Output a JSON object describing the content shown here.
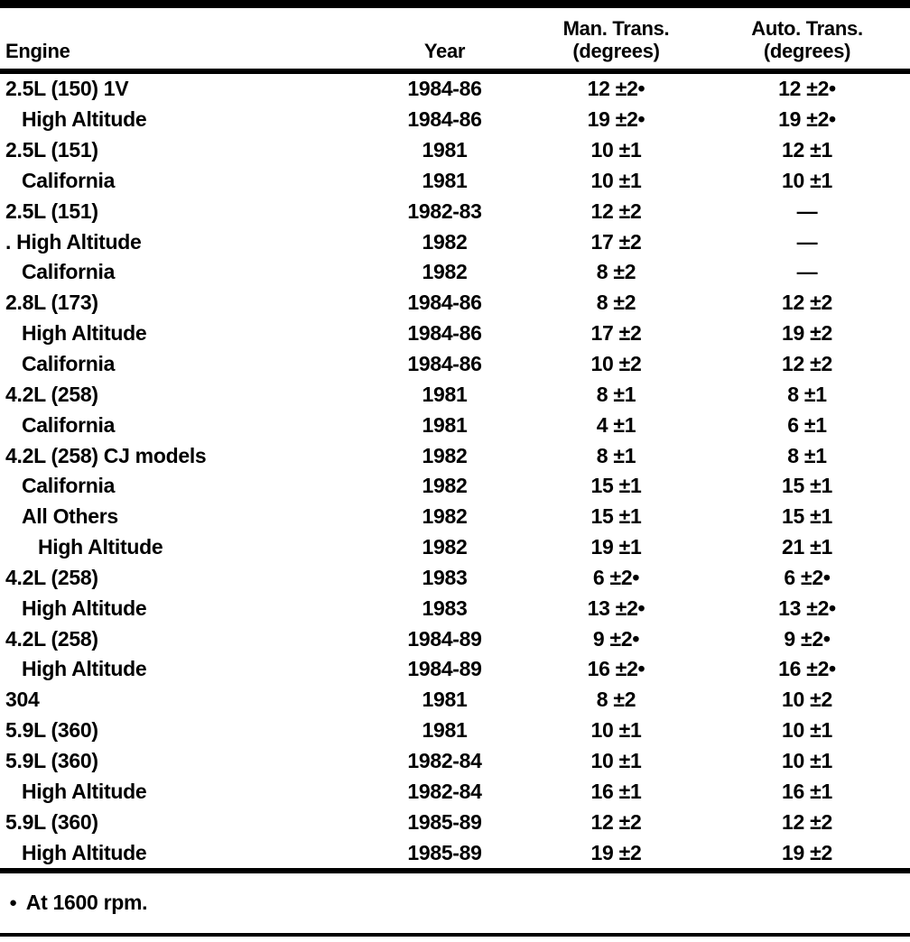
{
  "table": {
    "headers": {
      "engine": "Engine",
      "year": "Year",
      "man_line1": "Man. Trans.",
      "man_line2": "(degrees)",
      "auto_line1": "Auto. Trans.",
      "auto_line2": "(degrees)"
    },
    "rows": [
      {
        "engine": "2.5L (150) 1V",
        "indent": 0,
        "year": "1984-86",
        "man": "12 ±2•",
        "auto": "12 ±2•"
      },
      {
        "engine": "High Altitude",
        "indent": 1,
        "year": "1984-86",
        "man": "19 ±2•",
        "auto": "19 ±2•"
      },
      {
        "engine": "2.5L (151)",
        "indent": 0,
        "year": "1981",
        "man": "10 ±1",
        "auto": "12 ±1"
      },
      {
        "engine": "California",
        "indent": 1,
        "year": "1981",
        "man": "10 ±1",
        "auto": "10 ±1"
      },
      {
        "engine": "2.5L (151)",
        "indent": 0,
        "year": "1982-83",
        "man": "12 ±2",
        "auto": "—"
      },
      {
        "engine": ". High Altitude",
        "indent": 0,
        "year": "1982",
        "man": "17 ±2",
        "auto": "—"
      },
      {
        "engine": "California",
        "indent": 1,
        "year": "1982",
        "man": "8 ±2",
        "auto": "—"
      },
      {
        "engine": "2.8L (173)",
        "indent": 0,
        "year": "1984-86",
        "man": "8 ±2",
        "auto": "12 ±2"
      },
      {
        "engine": "High Altitude",
        "indent": 1,
        "year": "1984-86",
        "man": "17 ±2",
        "auto": "19 ±2"
      },
      {
        "engine": "California",
        "indent": 1,
        "year": "1984-86",
        "man": "10 ±2",
        "auto": "12 ±2"
      },
      {
        "engine": "4.2L (258)",
        "indent": 0,
        "year": "1981",
        "man": "8 ±1",
        "auto": "8 ±1"
      },
      {
        "engine": "California",
        "indent": 1,
        "year": "1981",
        "man": "4 ±1",
        "auto": "6 ±1"
      },
      {
        "engine": "4.2L (258) CJ models",
        "indent": 0,
        "year": "1982",
        "man": "8 ±1",
        "auto": "8 ±1"
      },
      {
        "engine": "California",
        "indent": 1,
        "year": "1982",
        "man": "15 ±1",
        "auto": "15 ±1"
      },
      {
        "engine": "All Others",
        "indent": 1,
        "year": "1982",
        "man": "15 ±1",
        "auto": "15 ±1"
      },
      {
        "engine": "High Altitude",
        "indent": 2,
        "year": "1982",
        "man": "19 ±1",
        "auto": "21 ±1"
      },
      {
        "engine": "4.2L (258)",
        "indent": 0,
        "year": "1983",
        "man": "6 ±2•",
        "auto": "6 ±2•"
      },
      {
        "engine": "High Altitude",
        "indent": 1,
        "year": "1983",
        "man": "13 ±2•",
        "auto": "13 ±2•"
      },
      {
        "engine": "4.2L (258)",
        "indent": 0,
        "year": "1984-89",
        "man": "9 ±2•",
        "auto": "9 ±2•"
      },
      {
        "engine": "High Altitude",
        "indent": 1,
        "year": "1984-89",
        "man": "16 ±2•",
        "auto": "16 ±2•"
      },
      {
        "engine": "304",
        "indent": 0,
        "year": "1981",
        "man": "8 ±2",
        "auto": "10 ±2"
      },
      {
        "engine": "5.9L (360)",
        "indent": 0,
        "year": "1981",
        "man": "10 ±1",
        "auto": "10 ±1"
      },
      {
        "engine": "5.9L (360)",
        "indent": 0,
        "year": "1982-84",
        "man": "10 ±1",
        "auto": "10 ±1"
      },
      {
        "engine": "High Altitude",
        "indent": 1,
        "year": "1982-84",
        "man": "16 ±1",
        "auto": "16 ±1"
      },
      {
        "engine": "5.9L (360)",
        "indent": 0,
        "year": "1985-89",
        "man": "12 ±2",
        "auto": "12 ±2"
      },
      {
        "engine": "High Altitude",
        "indent": 1,
        "year": "1985-89",
        "man": "19 ±2",
        "auto": "19 ±2"
      }
    ]
  },
  "footnote": {
    "marker": "●",
    "text": "At 1600 rpm."
  }
}
